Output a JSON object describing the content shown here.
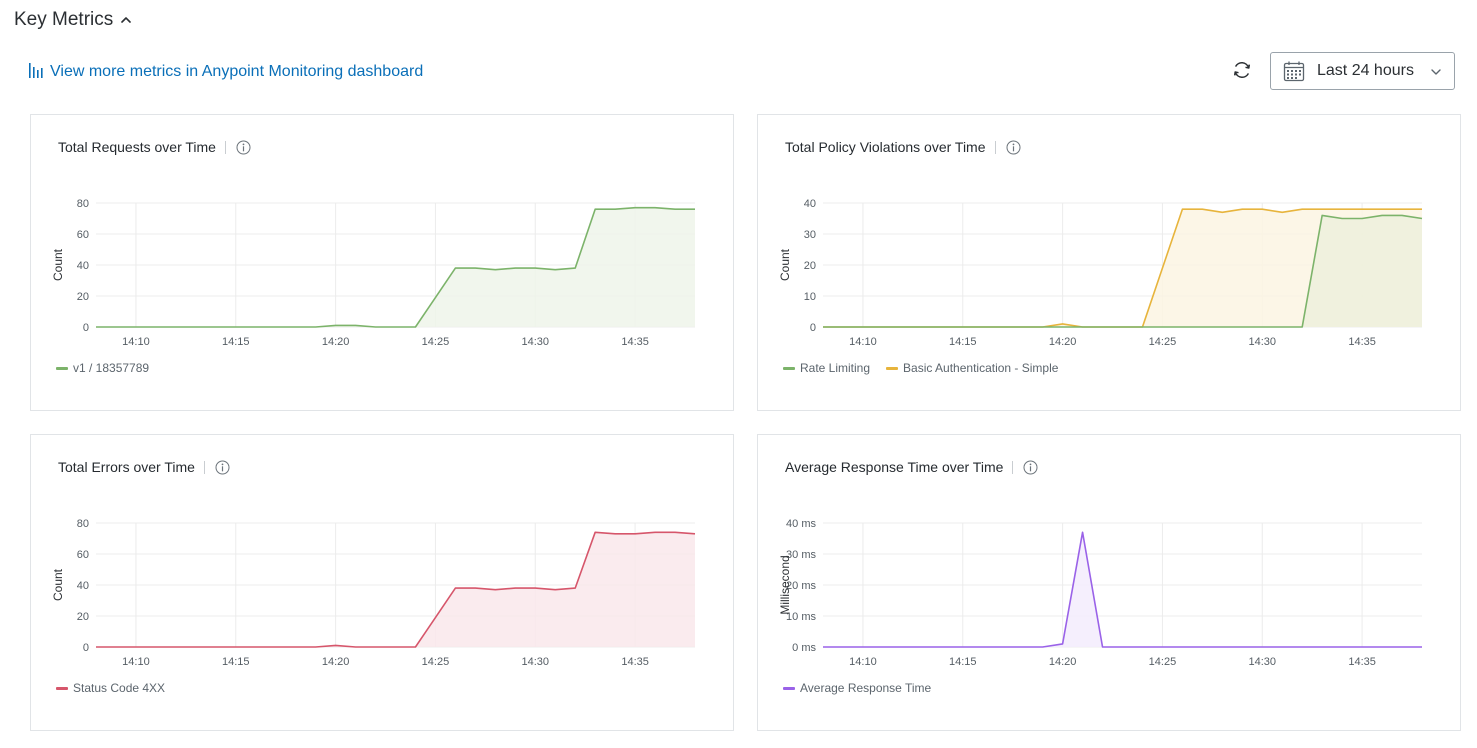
{
  "header": {
    "title": "Key Metrics",
    "collapse_icon": "chevron-up-icon"
  },
  "toolbar": {
    "monitoring_link": "View more metrics in Anypoint Monitoring dashboard",
    "monitoring_icon": "bar-chart-icon",
    "refresh_icon": "refresh-icon",
    "time_range": {
      "selected": "Last 24 hours",
      "icon": "calendar-icon",
      "chevron": "chevron-down-icon"
    }
  },
  "colors": {
    "link": "#0a6fb8",
    "green": "#7cb36a",
    "gold": "#e7b43c",
    "red": "#d6566b",
    "purple": "#9a62e8"
  },
  "panels": [
    {
      "id": "requests",
      "title": "Total Requests over Time",
      "legend": [
        {
          "label": "v1 / 18357789",
          "color": "#7cb36a"
        }
      ]
    },
    {
      "id": "violations",
      "title": "Total Policy Violations over Time",
      "legend": [
        {
          "label": "Rate Limiting",
          "color": "#7cb36a"
        },
        {
          "label": "Basic Authentication - Simple",
          "color": "#e7b43c"
        }
      ]
    },
    {
      "id": "errors",
      "title": "Total Errors over Time",
      "legend": [
        {
          "label": "Status Code 4XX",
          "color": "#d6566b"
        }
      ]
    },
    {
      "id": "response",
      "title": "Average Response Time over Time",
      "legend": [
        {
          "label": "Average Response Time",
          "color": "#9a62e8"
        }
      ]
    }
  ],
  "chart_data": [
    {
      "type": "area",
      "title": "Total Requests over Time",
      "ylabel": "Count",
      "xlim": [
        "14:08",
        "14:38"
      ],
      "ylim": [
        0,
        80
      ],
      "xticks": [
        "14:10",
        "14:15",
        "14:20",
        "14:25",
        "14:30",
        "14:35"
      ],
      "yticks": [
        "0",
        "20",
        "40",
        "60",
        "80"
      ],
      "grid": true,
      "legend_position": "bottom-left",
      "series": [
        {
          "name": "v1 / 18357789",
          "color": "#7cb36a",
          "fill": "#eef5ea",
          "x": [
            "14:08",
            "14:09",
            "14:10",
            "14:11",
            "14:12",
            "14:13",
            "14:14",
            "14:15",
            "14:16",
            "14:17",
            "14:18",
            "14:19",
            "14:20",
            "14:21",
            "14:22",
            "14:23",
            "14:24",
            "14:25",
            "14:26",
            "14:27",
            "14:28",
            "14:29",
            "14:30",
            "14:31",
            "14:32",
            "14:33",
            "14:34",
            "14:35",
            "14:36",
            "14:37",
            "14:38"
          ],
          "values": [
            0,
            0,
            0,
            0,
            0,
            0,
            0,
            0,
            0,
            0,
            0,
            0,
            1,
            1,
            0,
            0,
            0,
            19,
            38,
            38,
            37,
            38,
            38,
            37,
            38,
            76,
            76,
            77,
            77,
            76,
            76
          ]
        }
      ]
    },
    {
      "type": "area",
      "title": "Total Policy Violations over Time",
      "ylabel": "Count",
      "xlim": [
        "14:08",
        "14:38"
      ],
      "ylim": [
        0,
        40
      ],
      "xticks": [
        "14:10",
        "14:15",
        "14:20",
        "14:25",
        "14:30",
        "14:35"
      ],
      "yticks": [
        "0",
        "10",
        "20",
        "30",
        "40"
      ],
      "grid": true,
      "legend_position": "bottom-left",
      "series": [
        {
          "name": "Basic Authentication - Simple",
          "color": "#e7b43c",
          "fill": "#fcf5e3",
          "x": [
            "14:08",
            "14:09",
            "14:10",
            "14:11",
            "14:12",
            "14:13",
            "14:14",
            "14:15",
            "14:16",
            "14:17",
            "14:18",
            "14:19",
            "14:20",
            "14:21",
            "14:22",
            "14:23",
            "14:24",
            "14:25",
            "14:26",
            "14:27",
            "14:28",
            "14:29",
            "14:30",
            "14:31",
            "14:32",
            "14:33",
            "14:34",
            "14:35",
            "14:36",
            "14:37",
            "14:38"
          ],
          "values": [
            0,
            0,
            0,
            0,
            0,
            0,
            0,
            0,
            0,
            0,
            0,
            0,
            1,
            0,
            0,
            0,
            0,
            19,
            38,
            38,
            37,
            38,
            38,
            37,
            38,
            38,
            38,
            38,
            38,
            38,
            38
          ]
        },
        {
          "name": "Rate Limiting",
          "color": "#7cb36a",
          "fill": "#edf0dc",
          "x": [
            "14:08",
            "14:09",
            "14:10",
            "14:11",
            "14:12",
            "14:13",
            "14:14",
            "14:15",
            "14:16",
            "14:17",
            "14:18",
            "14:19",
            "14:20",
            "14:21",
            "14:22",
            "14:23",
            "14:24",
            "14:25",
            "14:26",
            "14:27",
            "14:28",
            "14:29",
            "14:30",
            "14:31",
            "14:32",
            "14:33",
            "14:34",
            "14:35",
            "14:36",
            "14:37",
            "14:38"
          ],
          "values": [
            0,
            0,
            0,
            0,
            0,
            0,
            0,
            0,
            0,
            0,
            0,
            0,
            0,
            0,
            0,
            0,
            0,
            0,
            0,
            0,
            0,
            0,
            0,
            0,
            0,
            36,
            35,
            35,
            36,
            36,
            35
          ]
        }
      ]
    },
    {
      "type": "area",
      "title": "Total Errors over Time",
      "ylabel": "Count",
      "xlim": [
        "14:08",
        "14:38"
      ],
      "ylim": [
        0,
        80
      ],
      "xticks": [
        "14:10",
        "14:15",
        "14:20",
        "14:25",
        "14:30",
        "14:35"
      ],
      "yticks": [
        "0",
        "20",
        "40",
        "60",
        "80"
      ],
      "grid": true,
      "legend_position": "bottom-left",
      "series": [
        {
          "name": "Status Code 4XX",
          "color": "#d6566b",
          "fill": "#f9e8eb",
          "x": [
            "14:08",
            "14:09",
            "14:10",
            "14:11",
            "14:12",
            "14:13",
            "14:14",
            "14:15",
            "14:16",
            "14:17",
            "14:18",
            "14:19",
            "14:20",
            "14:21",
            "14:22",
            "14:23",
            "14:24",
            "14:25",
            "14:26",
            "14:27",
            "14:28",
            "14:29",
            "14:30",
            "14:31",
            "14:32",
            "14:33",
            "14:34",
            "14:35",
            "14:36",
            "14:37",
            "14:38"
          ],
          "values": [
            0,
            0,
            0,
            0,
            0,
            0,
            0,
            0,
            0,
            0,
            0,
            0,
            1,
            0,
            0,
            0,
            0,
            19,
            38,
            38,
            37,
            38,
            38,
            37,
            38,
            74,
            73,
            73,
            74,
            74,
            73
          ]
        }
      ]
    },
    {
      "type": "area",
      "title": "Average Response Time over Time",
      "ylabel": "Millisecond",
      "xlim": [
        "14:08",
        "14:38"
      ],
      "ylim": [
        0,
        40
      ],
      "xticks": [
        "14:10",
        "14:15",
        "14:20",
        "14:25",
        "14:30",
        "14:35"
      ],
      "yticks": [
        "0 ms",
        "10 ms",
        "20 ms",
        "30 ms",
        "40 ms"
      ],
      "grid": true,
      "legend_position": "bottom-left",
      "series": [
        {
          "name": "Average Response Time",
          "color": "#9a62e8",
          "fill": "#f3ecfd",
          "x": [
            "14:08",
            "14:09",
            "14:10",
            "14:11",
            "14:12",
            "14:13",
            "14:14",
            "14:15",
            "14:16",
            "14:17",
            "14:18",
            "14:19",
            "14:20",
            "14:21",
            "14:22",
            "14:23",
            "14:24",
            "14:25",
            "14:26",
            "14:27",
            "14:28",
            "14:29",
            "14:30",
            "14:31",
            "14:32",
            "14:33",
            "14:34",
            "14:35",
            "14:36",
            "14:37",
            "14:38"
          ],
          "values": [
            0,
            0,
            0,
            0,
            0,
            0,
            0,
            0,
            0,
            0,
            0,
            0,
            1,
            37,
            0,
            0,
            0,
            0,
            0,
            0,
            0,
            0,
            0,
            0,
            0,
            0,
            0,
            0,
            0,
            0,
            0
          ]
        }
      ]
    }
  ]
}
